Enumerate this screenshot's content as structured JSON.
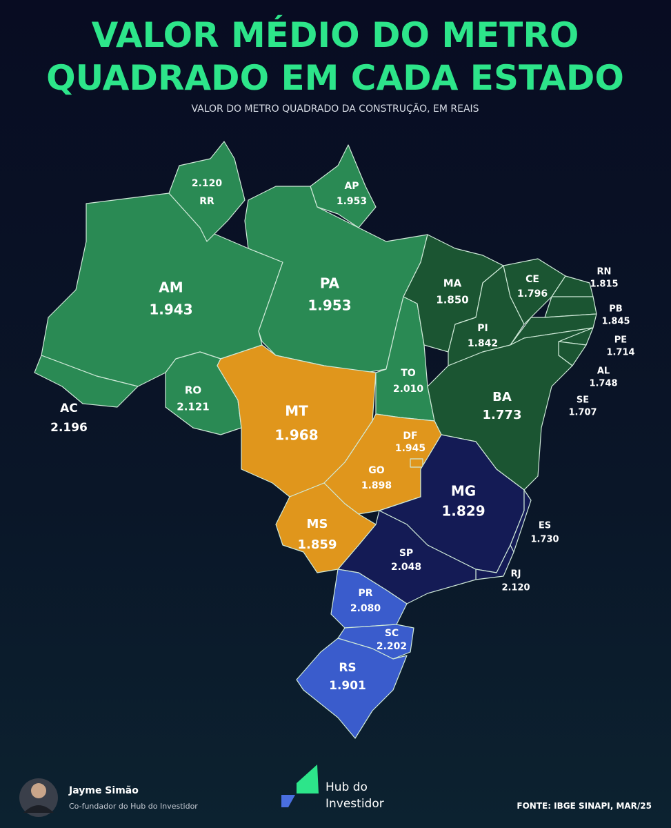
{
  "header": {
    "title": [
      "VALOR MÉDIO DO METRO",
      "QUADRADO EM CADA ESTADO"
    ],
    "subtitle": "VALOR DO METRO QUADRADO DA CONSTRUÇÃO, EM REAIS"
  },
  "states": [
    {
      "code": "AM",
      "value": "1.943",
      "color": "#2a8a54"
    },
    {
      "code": "RR",
      "value": "2.120",
      "color": "#2a8a54"
    },
    {
      "code": "AP",
      "value": "1.953",
      "color": "#2a8a54"
    },
    {
      "code": "PA",
      "value": "1.953",
      "color": "#2a8a54"
    },
    {
      "code": "AC",
      "value": "2.196",
      "color": "#2a8a54"
    },
    {
      "code": "RO",
      "value": "2.121",
      "color": "#2a8a54"
    },
    {
      "code": "MT",
      "value": "1.968",
      "color": "#e0961c"
    },
    {
      "code": "TO",
      "value": "2.010",
      "color": "#2a8a54"
    },
    {
      "code": "MA",
      "value": "1.850",
      "color": "#1b5532"
    },
    {
      "code": "PI",
      "value": "1.842",
      "color": "#1b5532"
    },
    {
      "code": "CE",
      "value": "1.796",
      "color": "#1b5532"
    },
    {
      "code": "RN",
      "value": "1.815",
      "color": "#1b5532"
    },
    {
      "code": "PB",
      "value": "1.845",
      "color": "#1b5532"
    },
    {
      "code": "PE",
      "value": "1.714",
      "color": "#1b5532"
    },
    {
      "code": "AL",
      "value": "1.748",
      "color": "#1b5532"
    },
    {
      "code": "SE",
      "value": "1.707",
      "color": "#1b5532"
    },
    {
      "code": "BA",
      "value": "1.773",
      "color": "#1b5532"
    },
    {
      "code": "GO",
      "value": "1.898",
      "color": "#e0961c"
    },
    {
      "code": "DF",
      "value": "1.945",
      "color": "#e0961c"
    },
    {
      "code": "MG",
      "value": "1.829",
      "color": "#141b55"
    },
    {
      "code": "ES",
      "value": "1.730",
      "color": "#141b55"
    },
    {
      "code": "RJ",
      "value": "2.120",
      "color": "#141b55"
    },
    {
      "code": "SP",
      "value": "2.048",
      "color": "#141b55"
    },
    {
      "code": "MS",
      "value": "1.859",
      "color": "#e0961c"
    },
    {
      "code": "PR",
      "value": "2.080",
      "color": "#3a5ccc"
    },
    {
      "code": "SC",
      "value": "2.202",
      "color": "#3a5ccc"
    },
    {
      "code": "RS",
      "value": "1.901",
      "color": "#3a5ccc"
    }
  ],
  "footer": {
    "author": "Jayme Simão",
    "role": "Co-fundador do Hub do Investidor",
    "logo": [
      "Hub do",
      "Investidor"
    ],
    "source": "FONTE: IBGE SINAPI, MAR/25"
  }
}
